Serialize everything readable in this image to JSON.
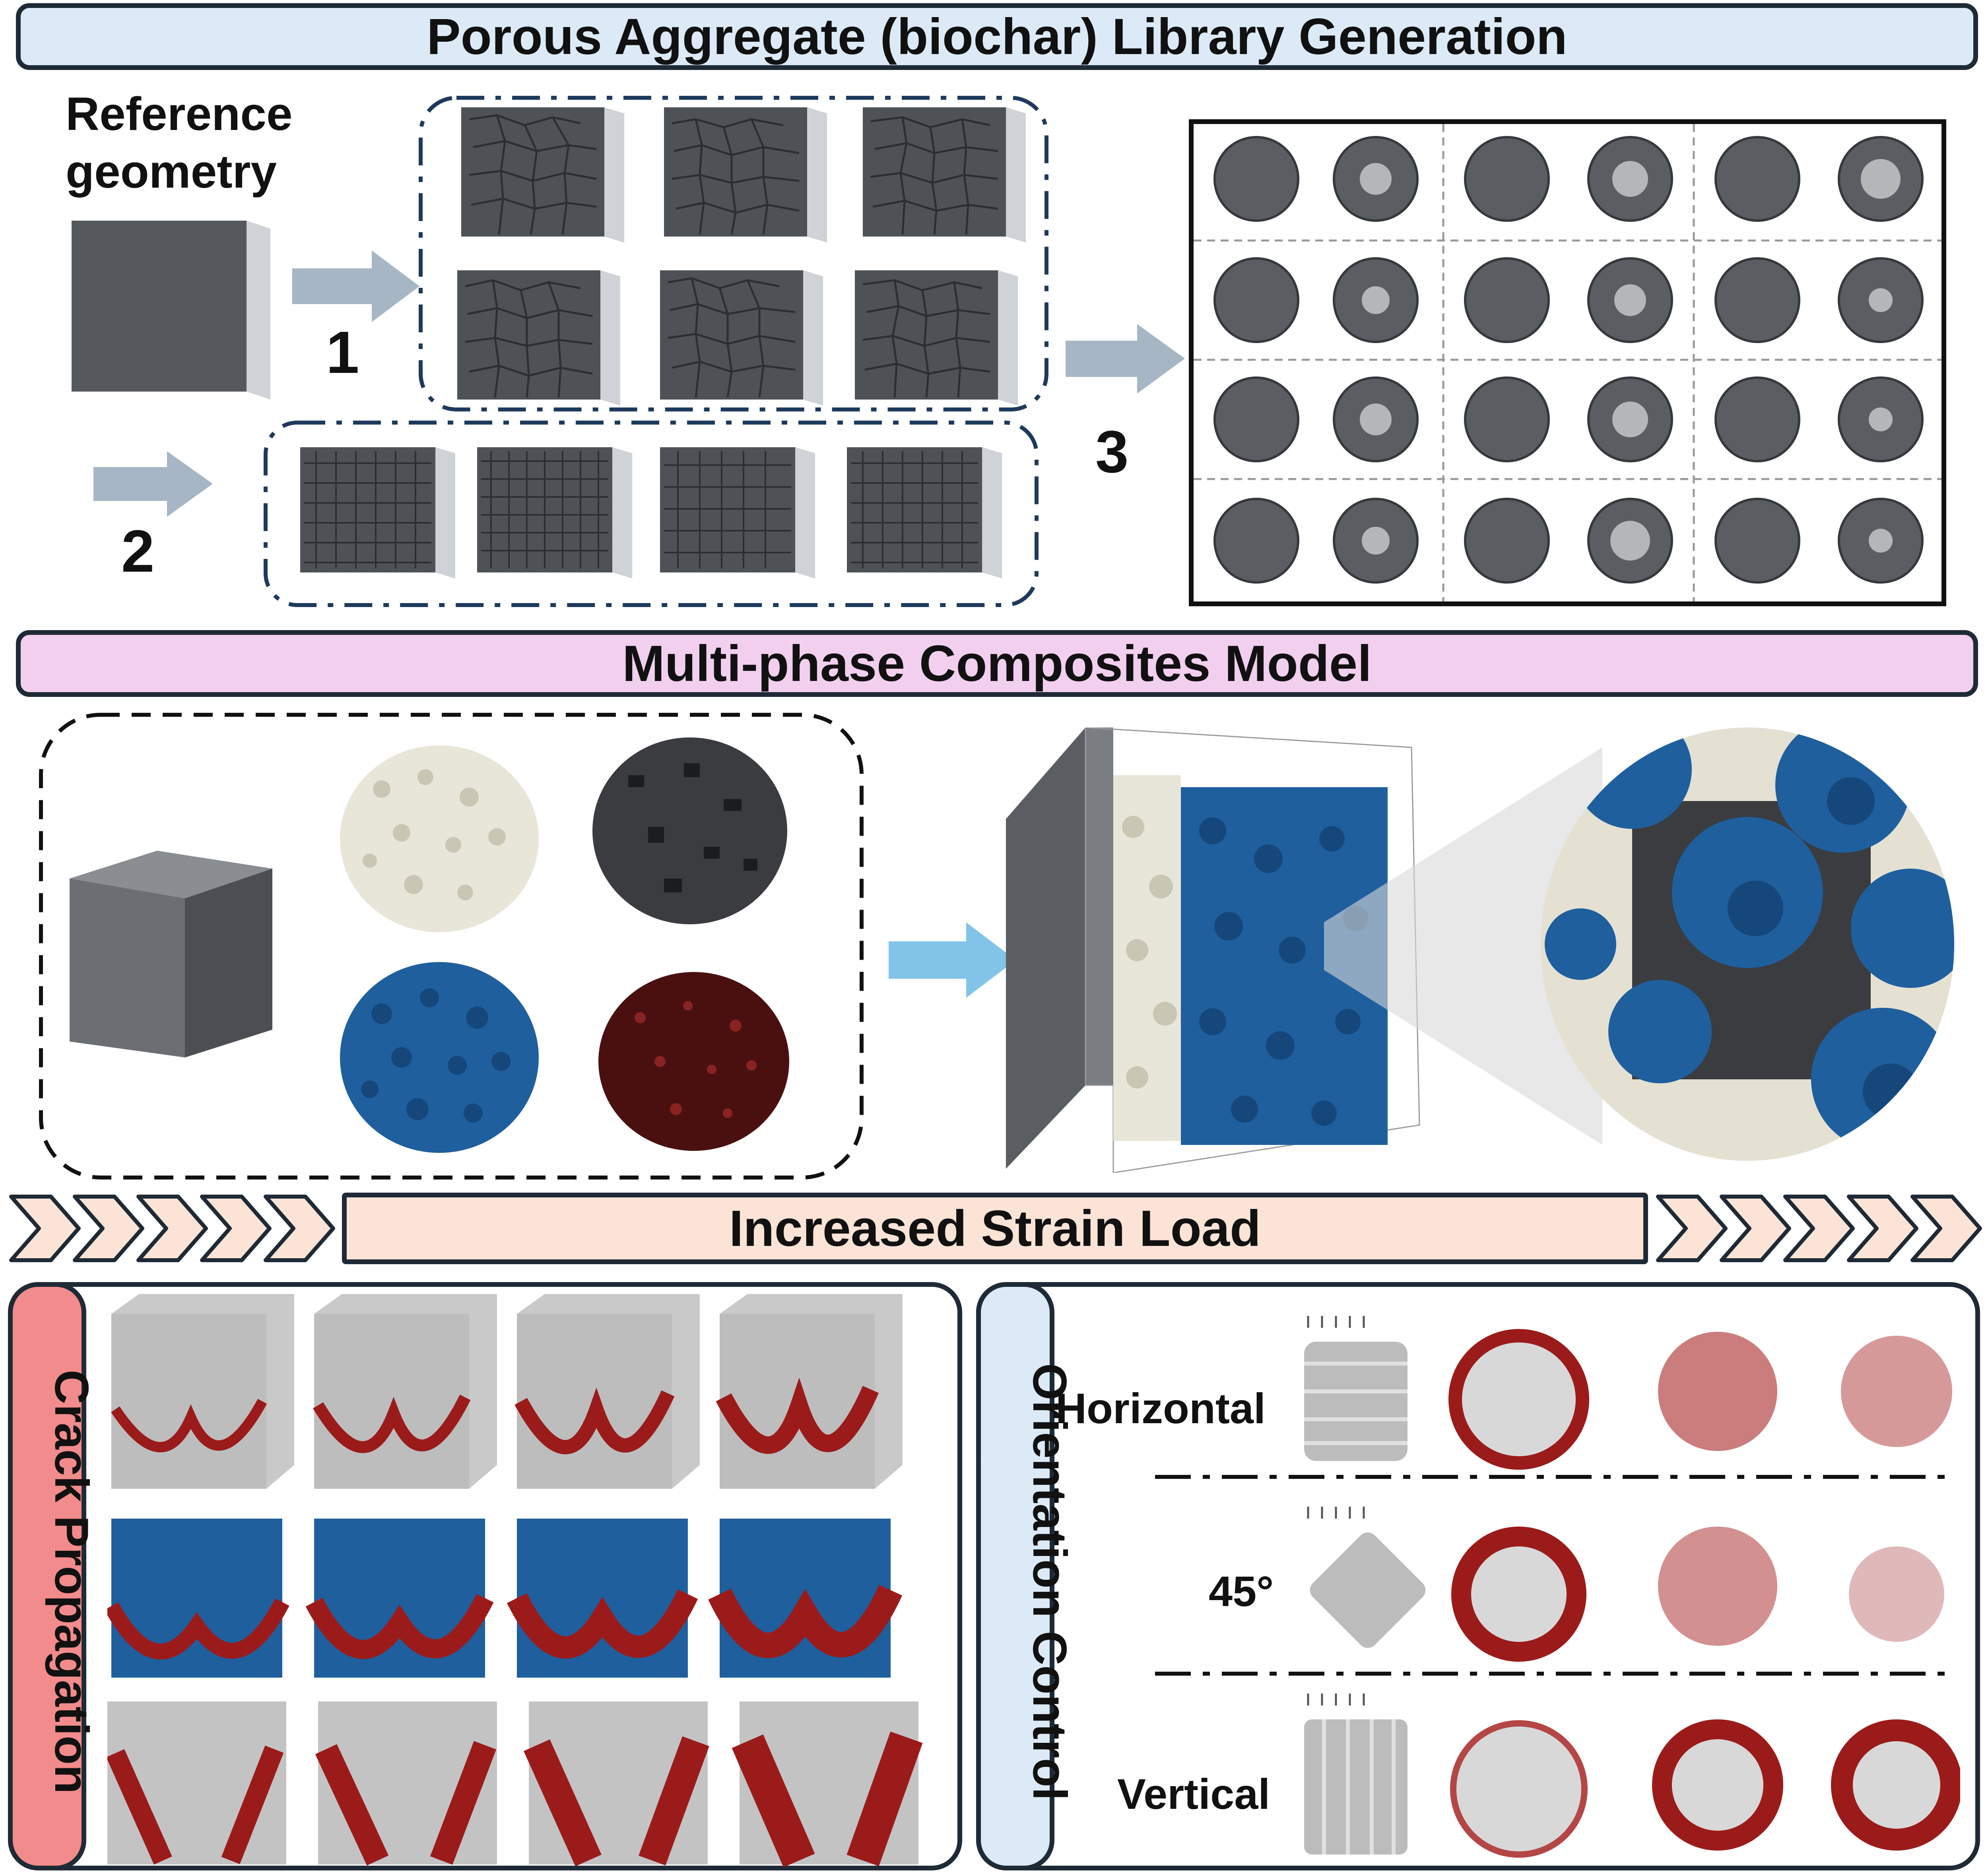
{
  "sections": {
    "library_title": "Porous Aggregate (biochar) Library Generation",
    "composites_title": "Multi-phase Composites Model",
    "strain_title": "Increased Strain Load"
  },
  "library": {
    "reference_label_line1": "Reference",
    "reference_label_line2": "geometry",
    "step1": "1",
    "step2": "2",
    "step3": "3"
  },
  "crack_panel": {
    "title": "Crack Propagation"
  },
  "orientation_panel": {
    "title": "Orientation Control",
    "rows": [
      "Horizontal",
      "45°",
      "Vertical"
    ]
  },
  "colors": {
    "library_banner": "#dceaf7",
    "composites_banner": "#f2cfee",
    "strain_banner": "#fbe3d6",
    "crack_tab": "#f28b8b",
    "orientation_tab": "#dceaf7",
    "arrow_gray": "#a6b6c4",
    "arrow_blue": "#82c4e8",
    "aggregate_blue": "#1f5f9e",
    "crack_red": "#9b1b1b"
  }
}
